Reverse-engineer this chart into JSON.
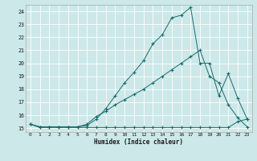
{
  "xlabel": "Humidex (Indice chaleur)",
  "bg_color": "#cce8e8",
  "grid_color": "#b8d8d8",
  "line_color": "#1a6b6b",
  "xlim": [
    -0.5,
    23.5
  ],
  "ylim": [
    14.7,
    24.5
  ],
  "xticks": [
    0,
    1,
    2,
    3,
    4,
    5,
    6,
    7,
    8,
    9,
    10,
    11,
    12,
    13,
    14,
    15,
    16,
    17,
    18,
    19,
    20,
    21,
    22,
    23
  ],
  "yticks": [
    15,
    16,
    17,
    18,
    19,
    20,
    21,
    22,
    23,
    24
  ],
  "line1_x": [
    0,
    1,
    2,
    3,
    4,
    5,
    6,
    7,
    8,
    9,
    10,
    11,
    12,
    13,
    14,
    15,
    16,
    17,
    18,
    19,
    20,
    21,
    22,
    23
  ],
  "line1_y": [
    15.3,
    15.05,
    15.05,
    15.05,
    15.05,
    15.05,
    15.05,
    15.05,
    15.05,
    15.05,
    15.05,
    15.05,
    15.05,
    15.05,
    15.05,
    15.05,
    15.05,
    15.05,
    15.05,
    15.05,
    15.05,
    15.05,
    15.5,
    15.7
  ],
  "line2_x": [
    0,
    1,
    2,
    3,
    4,
    5,
    6,
    7,
    8,
    9,
    10,
    11,
    12,
    13,
    14,
    15,
    16,
    17,
    18,
    19,
    20,
    21,
    22,
    23
  ],
  "line2_y": [
    15.3,
    15.1,
    15.1,
    15.1,
    15.1,
    15.1,
    15.2,
    15.7,
    16.5,
    17.5,
    18.5,
    19.3,
    20.2,
    21.5,
    22.2,
    23.5,
    23.7,
    24.3,
    20.0,
    20.0,
    17.5,
    19.2,
    17.3,
    15.7
  ],
  "line3_x": [
    0,
    1,
    2,
    3,
    4,
    5,
    6,
    7,
    8,
    9,
    10,
    11,
    12,
    13,
    14,
    15,
    16,
    17,
    18,
    19,
    20,
    21,
    22,
    23
  ],
  "line3_y": [
    15.3,
    15.1,
    15.1,
    15.1,
    15.1,
    15.1,
    15.3,
    15.9,
    16.3,
    16.8,
    17.2,
    17.6,
    18.0,
    18.5,
    19.0,
    19.5,
    20.0,
    20.5,
    21.0,
    19.0,
    18.5,
    16.8,
    15.8,
    15.1
  ]
}
